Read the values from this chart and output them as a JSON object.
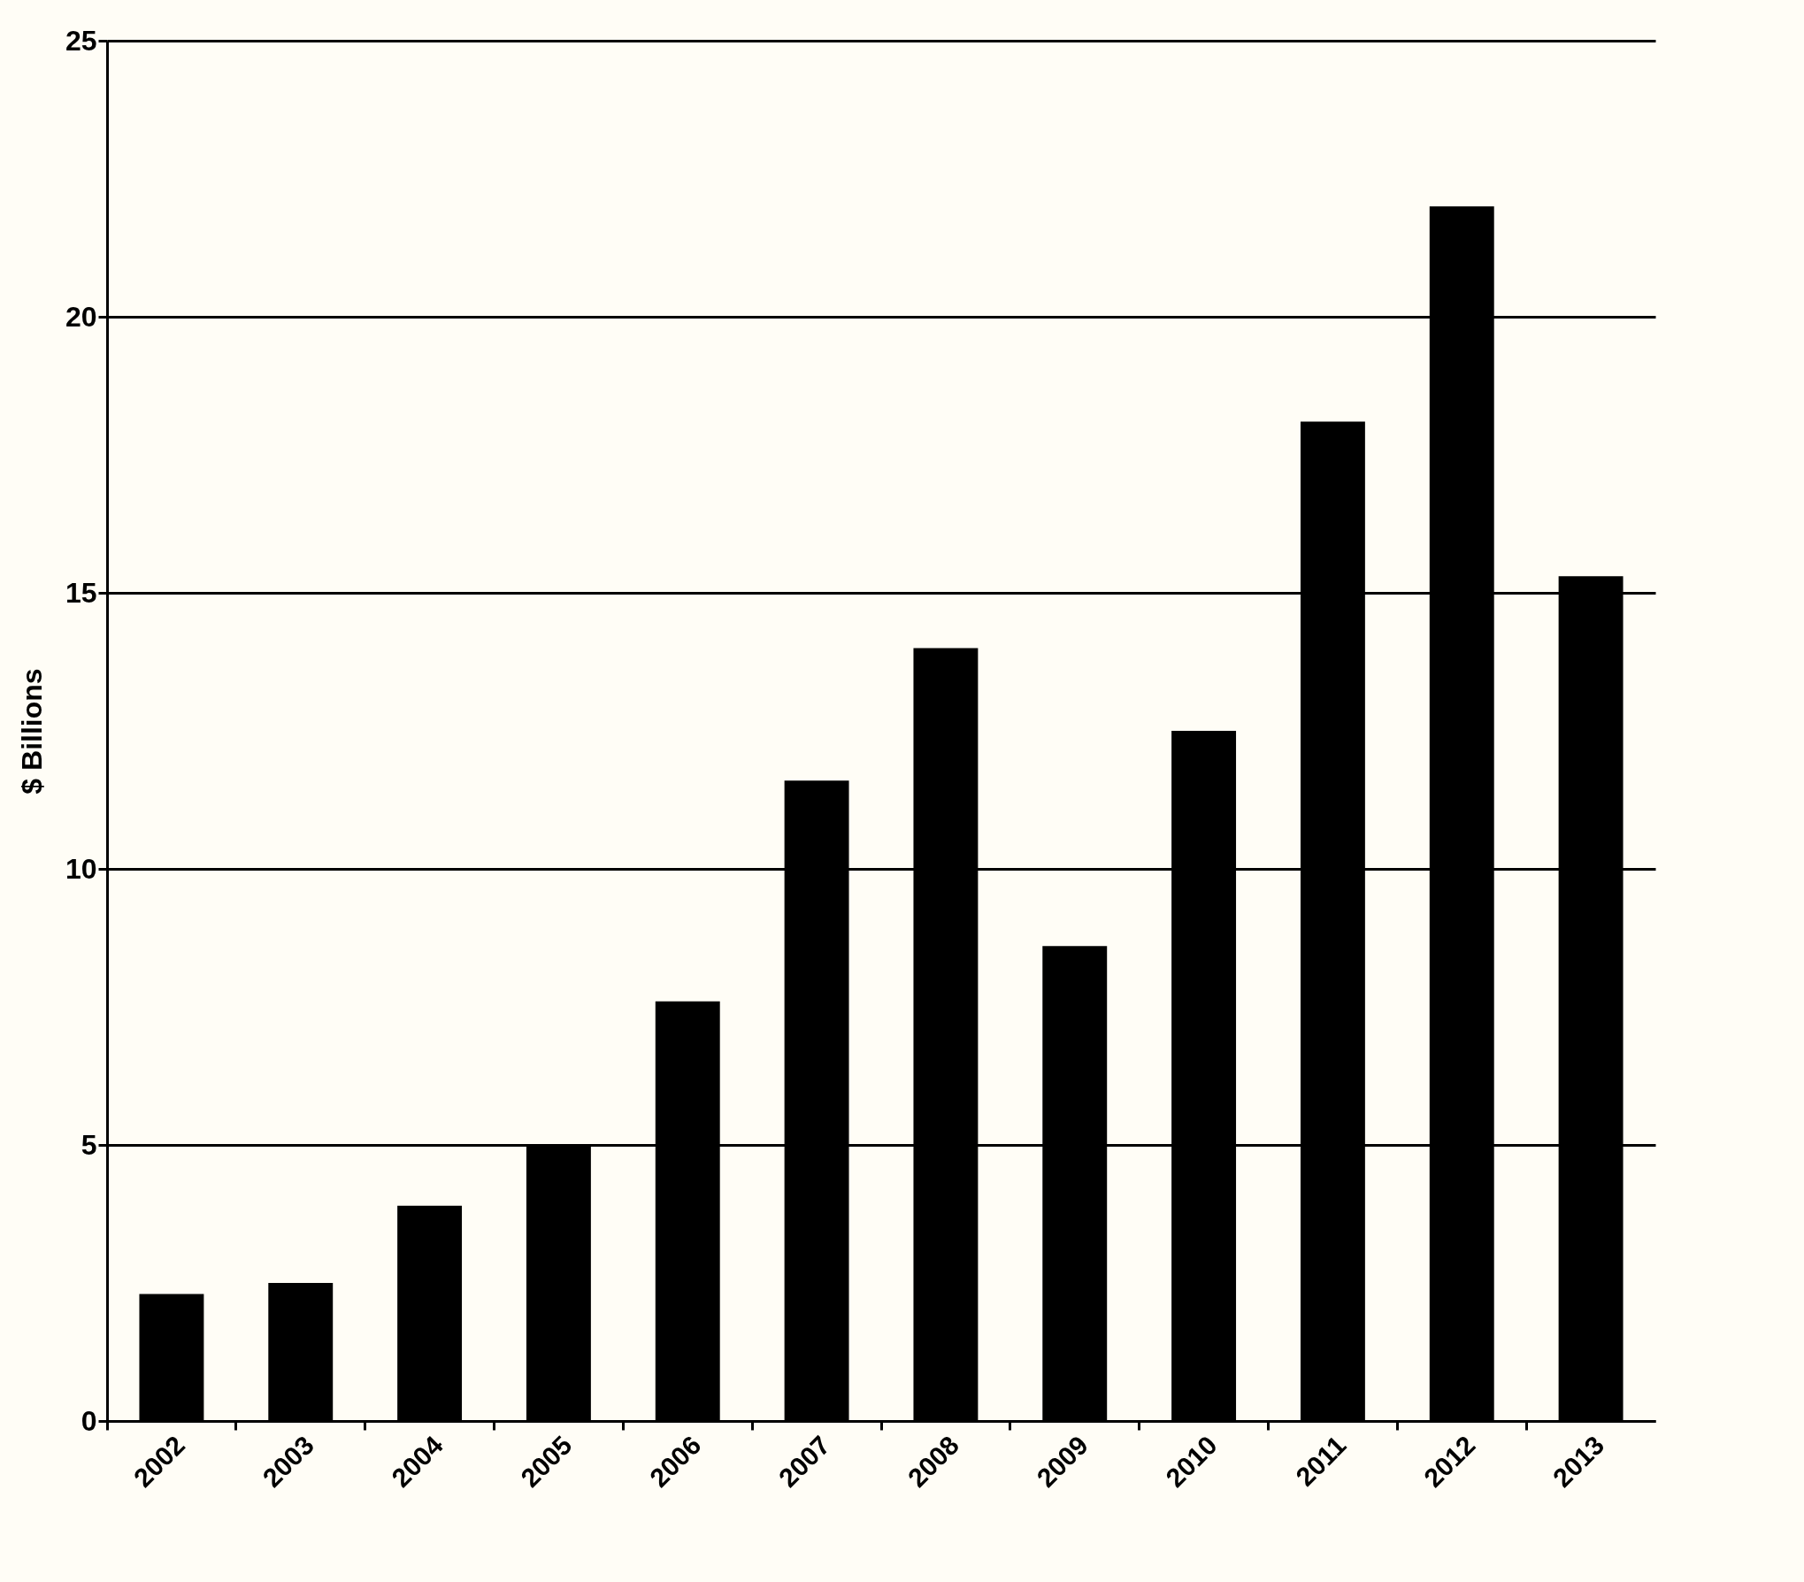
{
  "chart_data": {
    "type": "bar",
    "ylabel": "$ Billions",
    "categories": [
      "2002",
      "2003",
      "2004",
      "2005",
      "2006",
      "2007",
      "2008",
      "2009",
      "2010",
      "2011",
      "2012",
      "2013"
    ],
    "values": [
      2.3,
      2.5,
      3.9,
      5.0,
      7.6,
      11.6,
      14.0,
      8.6,
      12.5,
      18.1,
      22.0,
      15.3
    ],
    "color": "#000000",
    "ylim": [
      0,
      25
    ],
    "yticks": [
      0,
      5,
      10,
      15,
      20,
      25
    ],
    "grid": "y"
  }
}
